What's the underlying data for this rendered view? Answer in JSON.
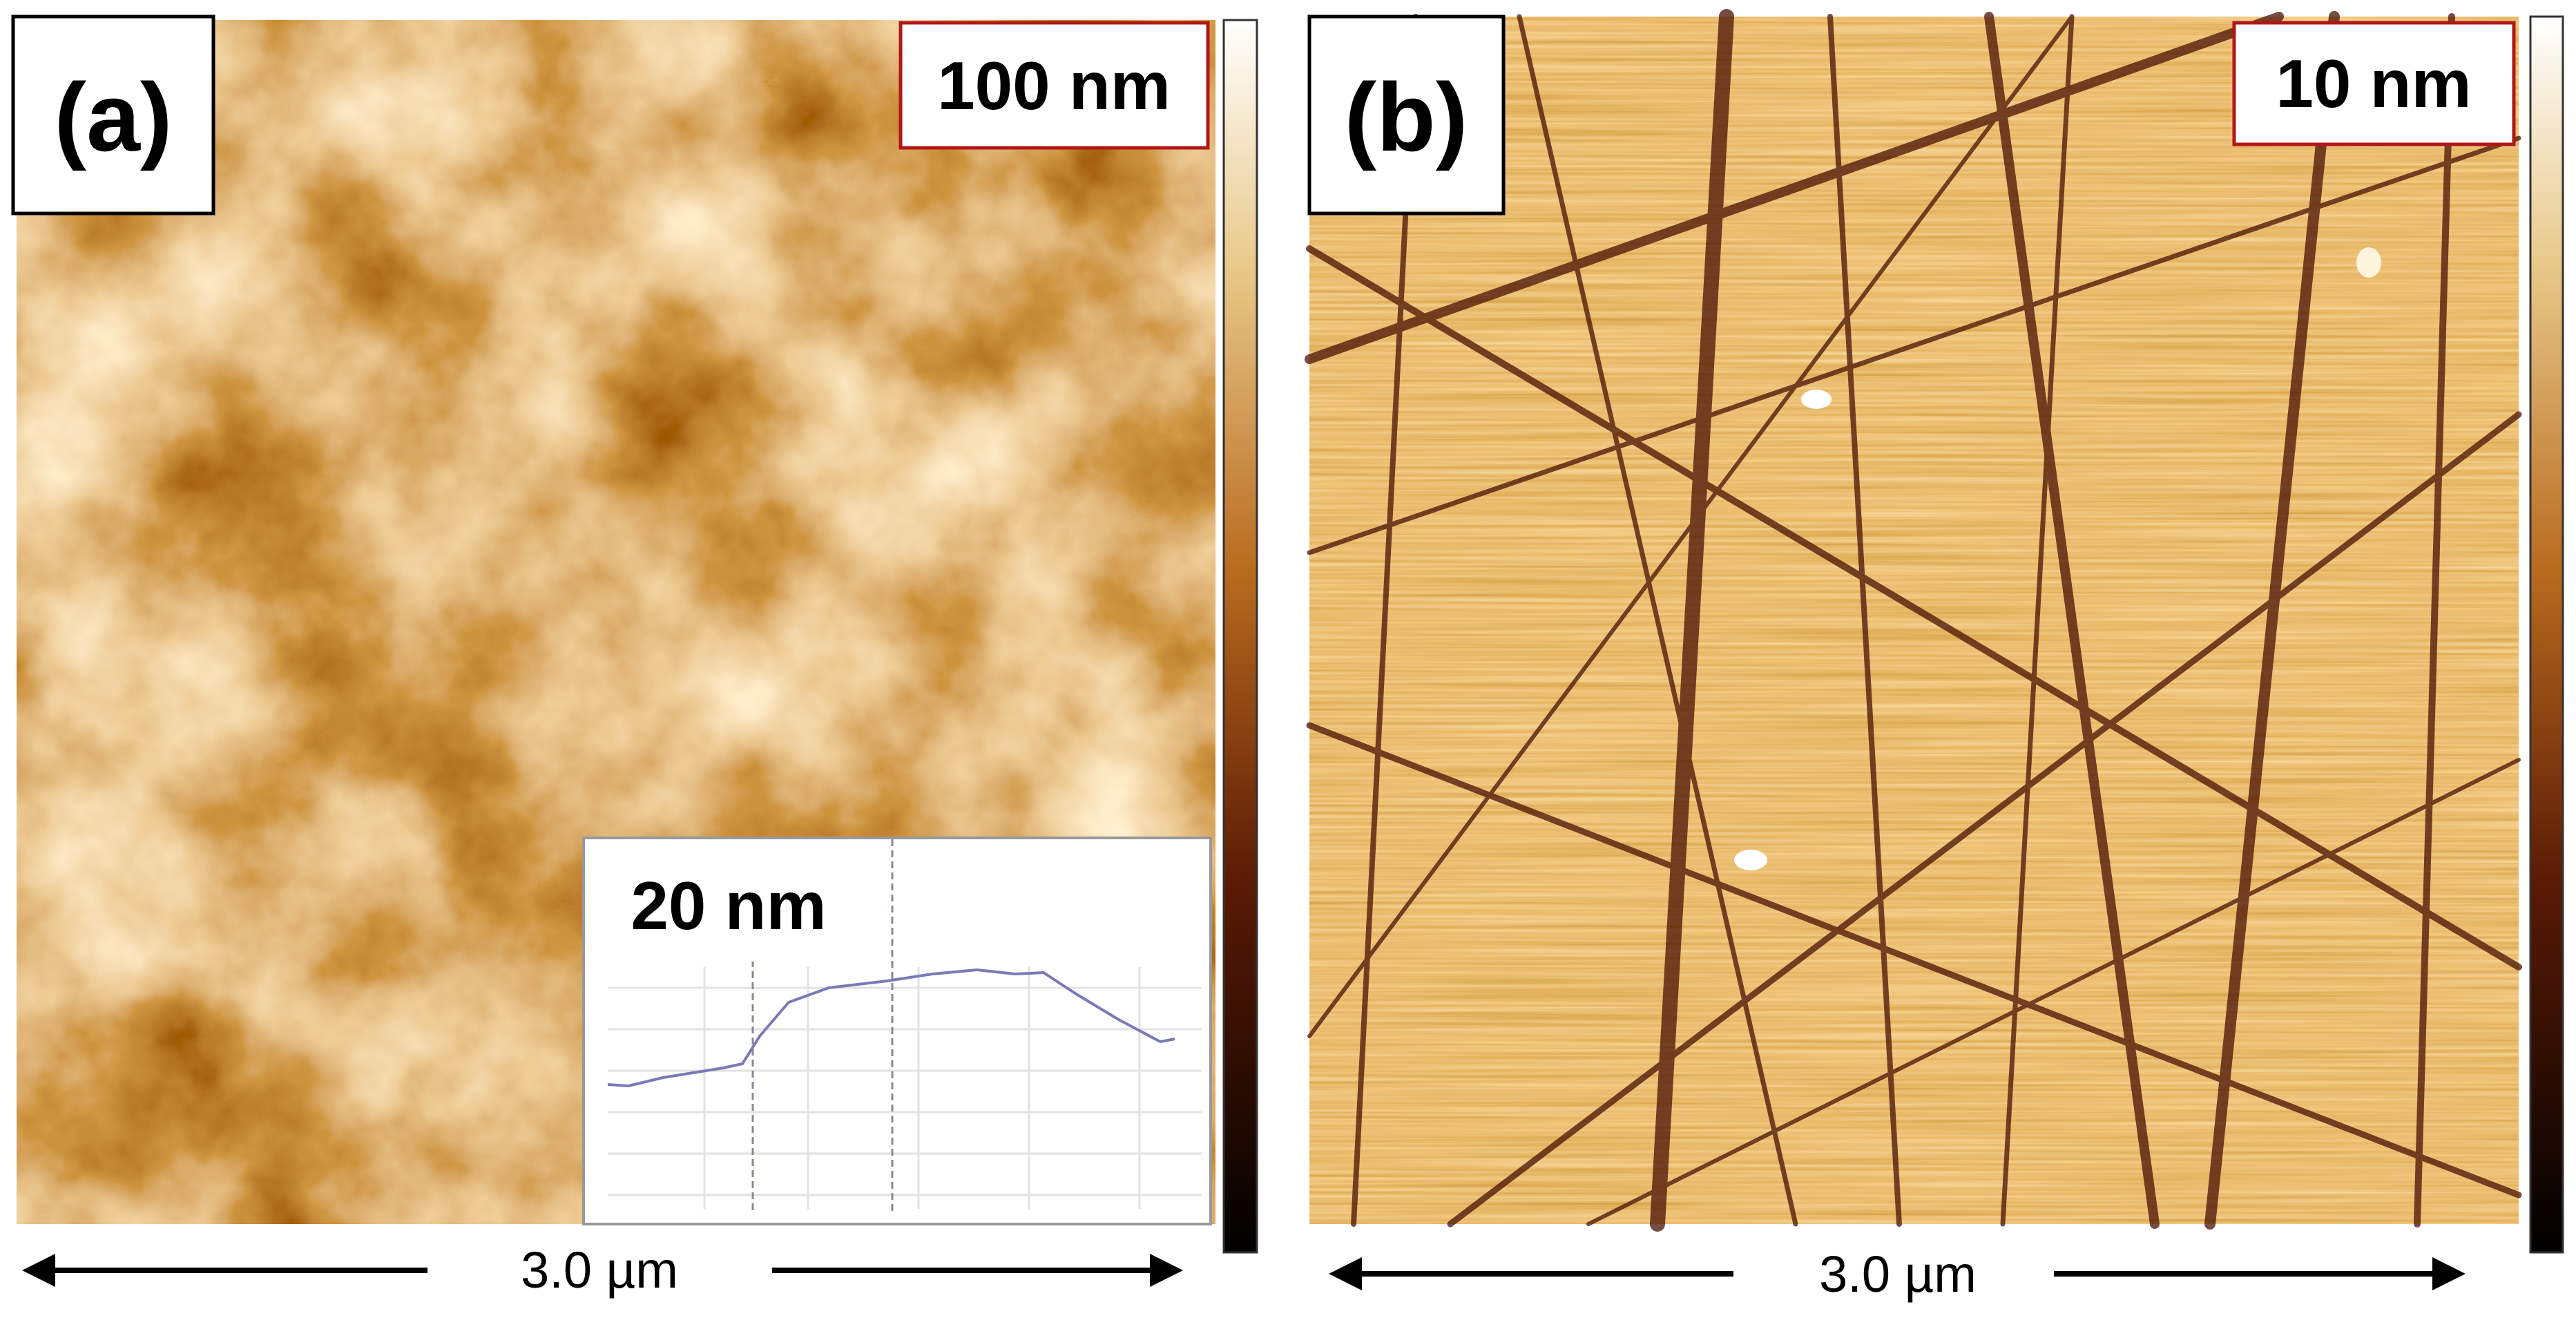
{
  "panels": [
    {
      "label": "(a)",
      "height_range": "100 nm",
      "inset": {
        "label": "20 nm"
      },
      "scale_bar": "3.0 µm"
    },
    {
      "label": "(b)",
      "height_range": "10 nm",
      "scale_bar": "3.0 µm"
    }
  ]
}
